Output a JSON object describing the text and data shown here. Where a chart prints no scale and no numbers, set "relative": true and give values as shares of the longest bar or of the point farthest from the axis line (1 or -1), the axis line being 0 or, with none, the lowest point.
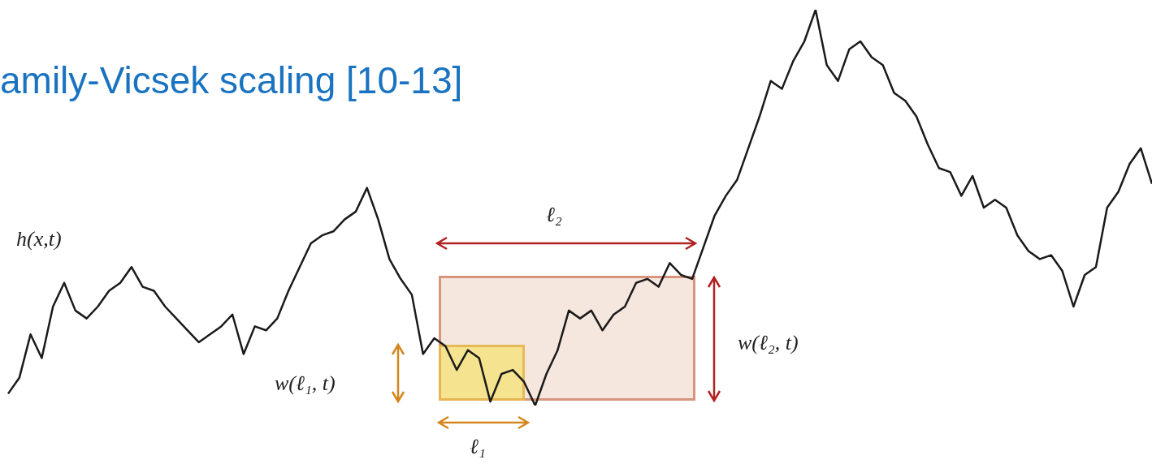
{
  "chart_data": {
    "type": "line",
    "title": "amily-Vicsek scaling [10-13]",
    "relative": true,
    "legend": false,
    "marker": "none",
    "categories": [
      null,
      null,
      null,
      null,
      null,
      null,
      null,
      null,
      null,
      null,
      null,
      null,
      null,
      null,
      null,
      null,
      null,
      null,
      null,
      null,
      null,
      null,
      null,
      null,
      null,
      null,
      null,
      null,
      null,
      null,
      null,
      null,
      null,
      null,
      null,
      null,
      null,
      null,
      null,
      null,
      null,
      null,
      null,
      null,
      null,
      null,
      null,
      null,
      null,
      null,
      null,
      null,
      null,
      null,
      null,
      null,
      null,
      null,
      null,
      null,
      null,
      null,
      null,
      null,
      null,
      null,
      null,
      null,
      null,
      null,
      null,
      null,
      null,
      null,
      null,
      null,
      null,
      null,
      null,
      null,
      null,
      null,
      null,
      null,
      null,
      null,
      null,
      null,
      null,
      null,
      null,
      null,
      null,
      null,
      null,
      null,
      null,
      null,
      null,
      null,
      null,
      null,
      null
    ],
    "series": [
      {
        "color": "#1a1a1a",
        "values": [
          0.03,
          0.07,
          0.18,
          0.12,
          0.25,
          0.31,
          0.24,
          0.22,
          0.25,
          0.29,
          0.31,
          0.35,
          0.3,
          0.29,
          0.25,
          0.22,
          0.19,
          0.16,
          0.18,
          0.2,
          0.23,
          0.13,
          0.2,
          0.19,
          0.22,
          0.29,
          0.35,
          0.41,
          0.43,
          0.44,
          0.47,
          0.49,
          0.55,
          0.47,
          0.37,
          0.32,
          0.28,
          0.13,
          0.17,
          0.15,
          0.09,
          0.14,
          0.12,
          0.01,
          0.08,
          0.09,
          0.06,
          0,
          0.08,
          0.14,
          0.24,
          0.22,
          0.24,
          0.19,
          0.23,
          0.25,
          0.31,
          0.32,
          0.3,
          0.36,
          0.33,
          0.32,
          0.4,
          0.48,
          0.53,
          0.57,
          0.65,
          0.73,
          0.82,
          0.8,
          0.87,
          0.92,
          1,
          0.86,
          0.82,
          0.9,
          0.92,
          0.88,
          0.86,
          0.79,
          0.77,
          0.73,
          0.66,
          0.6,
          0.59,
          0.53,
          0.58,
          0.5,
          0.52,
          0.5,
          0.43,
          0.39,
          0.37,
          0.38,
          0.34,
          0.25,
          0.33,
          0.35,
          0.5,
          0.54,
          0.61,
          0.65,
          0.56
        ]
      }
    ],
    "annotations": [
      "h(x,t)",
      "ℓ₂",
      "w(ℓ₂, t)",
      "w(ℓ₁, t)",
      "ℓ₁"
    ]
  }
}
